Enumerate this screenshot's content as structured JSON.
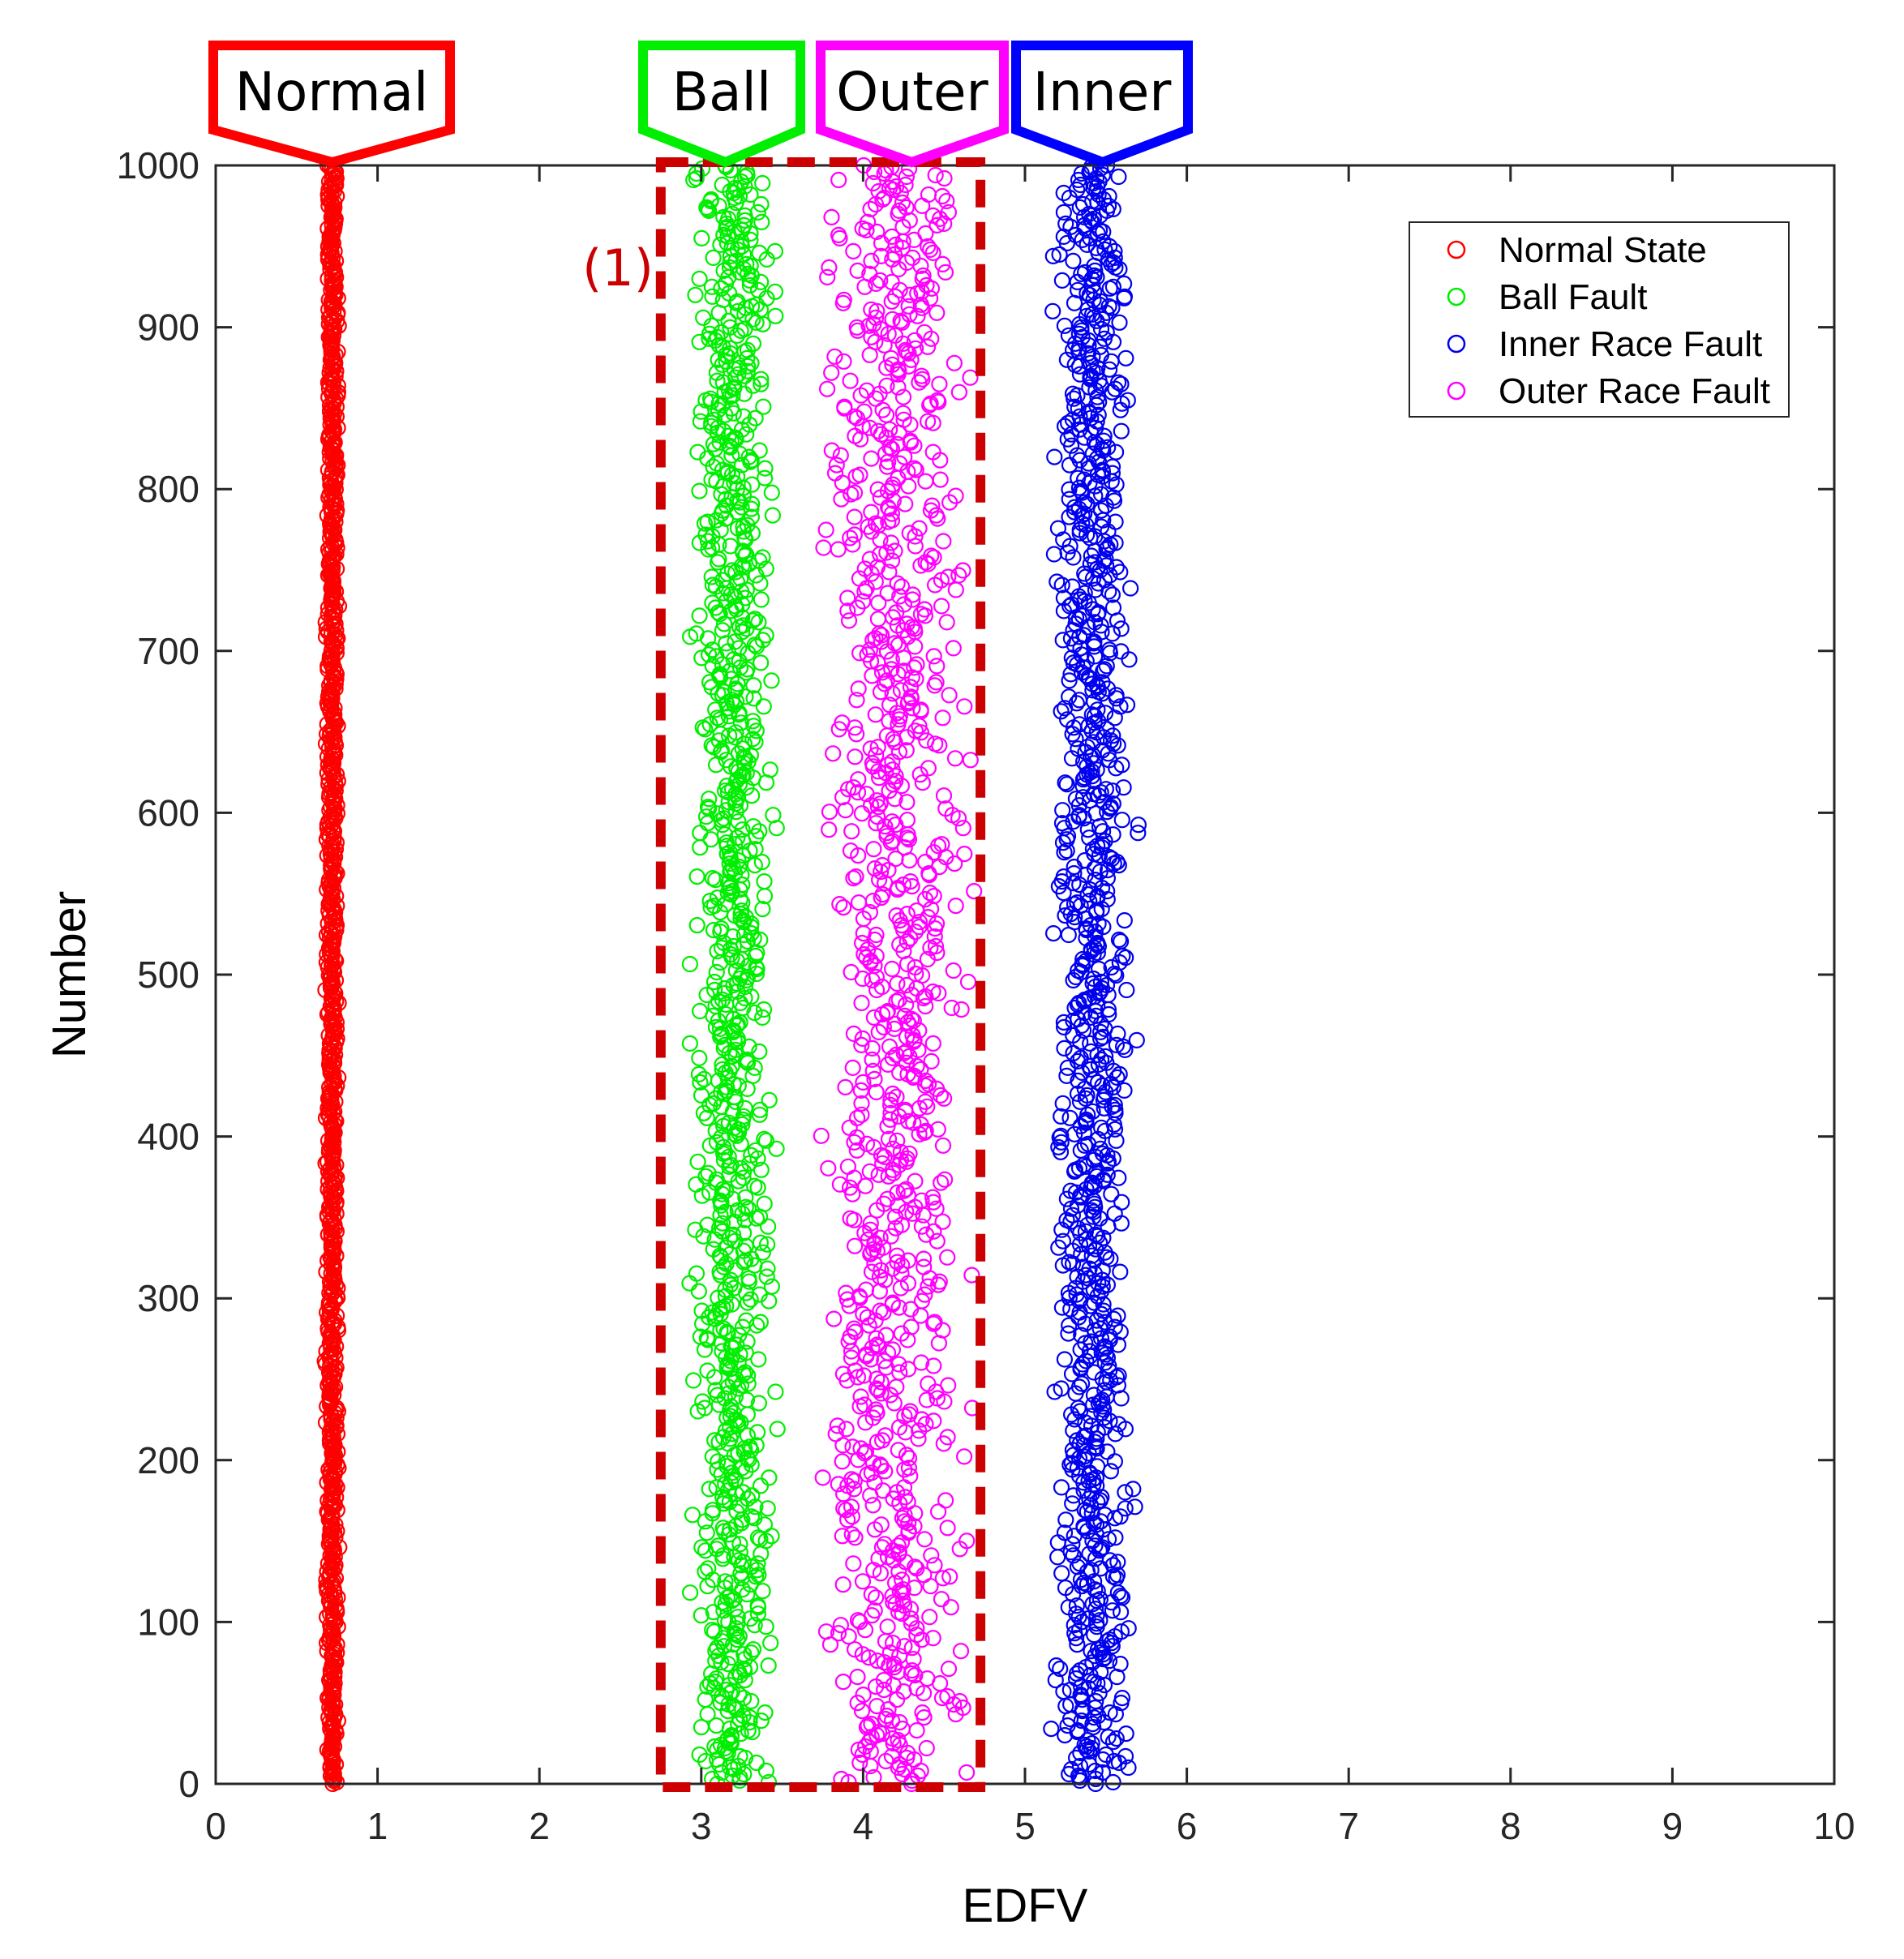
{
  "chart_data": {
    "type": "scatter",
    "title": "",
    "xlabel": "EDFV",
    "ylabel": "Number",
    "xlim": [
      0,
      10
    ],
    "ylim": [
      0,
      1000
    ],
    "xticks": [
      0,
      1,
      2,
      3,
      4,
      5,
      6,
      7,
      8,
      9,
      10
    ],
    "yticks": [
      0,
      100,
      200,
      300,
      400,
      500,
      600,
      700,
      800,
      900,
      1000
    ],
    "grid": false,
    "marker": "open-circle",
    "legend": {
      "placement": "top-right",
      "entries": [
        "Normal State",
        "Ball Fault",
        "Inner Race Fault",
        "Outer Race Fault"
      ]
    },
    "series": [
      {
        "name": "Normal State",
        "color": "#ff0000",
        "x_center": 0.72,
        "x_spread": 0.03,
        "count": 1000
      },
      {
        "name": "Ball Fault",
        "color": "#00ee00",
        "x_center": 3.2,
        "x_spread": 0.2,
        "count": 1000
      },
      {
        "name": "Inner Race Fault",
        "color": "#0000ee",
        "x_center": 5.42,
        "x_spread": 0.2,
        "count": 1000
      },
      {
        "name": "Outer Race Fault",
        "color": "#ff00ff",
        "x_center": 4.2,
        "x_spread": 0.35,
        "count": 1000
      }
    ],
    "callouts": [
      {
        "label": "Normal",
        "color": "#ff0000",
        "x": 0.72
      },
      {
        "label": "Ball",
        "color": "#00ee00",
        "x": 3.15
      },
      {
        "label": "Outer",
        "color": "#ff00ff",
        "x": 4.3
      },
      {
        "label": "Inner",
        "color": "#0000ff",
        "x": 5.48
      }
    ],
    "annotations": [
      {
        "label": "(1)",
        "color": "#cc0000"
      }
    ],
    "highlight_box": {
      "color": "#cc0000",
      "style": "dashed",
      "x_range": [
        2.9,
        4.75
      ],
      "y_range": [
        0,
        1000
      ]
    }
  }
}
